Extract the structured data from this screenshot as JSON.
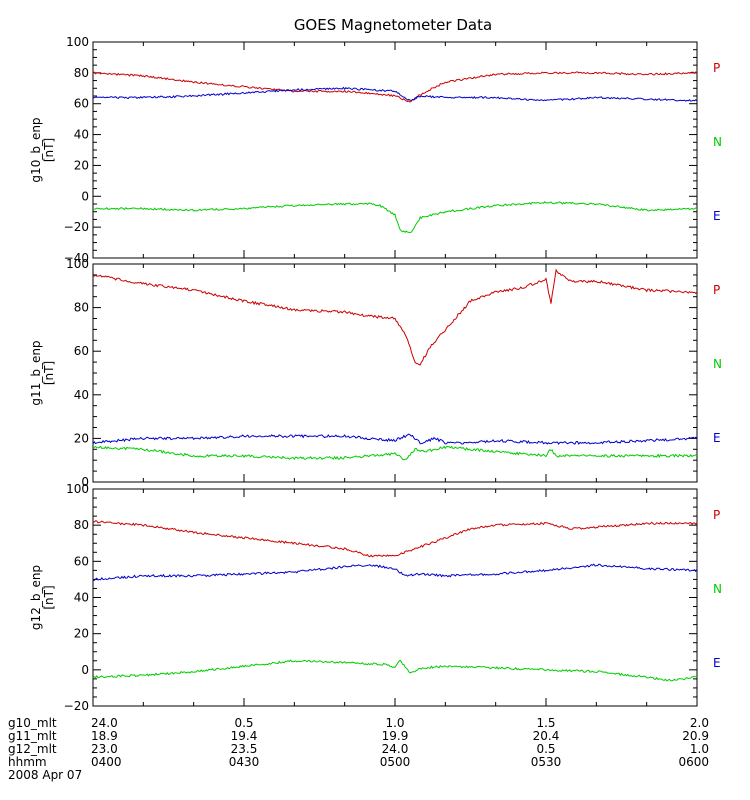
{
  "title": "GOES Magnetometer Data",
  "colors": {
    "P": "#cc0000",
    "N": "#00cc00",
    "E": "#0000cc",
    "axis": "#000000",
    "background": "#ffffff"
  },
  "footer": {
    "labels": [
      "g10_mlt",
      "g11_mlt",
      "g12_mlt",
      "hhmm",
      "2008 Apr 07"
    ],
    "rows": [
      [
        "24.0",
        "0.5",
        "1.0",
        "1.5",
        "2.0"
      ],
      [
        "18.9",
        "19.4",
        "19.9",
        "20.4",
        "20.9"
      ],
      [
        "23.0",
        "23.5",
        "24.0",
        "0.5",
        "1.0"
      ],
      [
        "0400",
        "0430",
        "0500",
        "0530",
        "0600"
      ]
    ]
  },
  "chart_data": [
    {
      "type": "line",
      "ylabel": "g10_b_enp",
      "yunit": "[nT]",
      "ylim": [
        -40,
        100
      ],
      "yticks": [
        -40,
        -20,
        0,
        20,
        40,
        60,
        80,
        100
      ],
      "ytick_labels": [
        "−40",
        "−20",
        "0",
        "20",
        "40",
        "60",
        "80",
        "100"
      ],
      "legend": [
        "P",
        "N",
        "E"
      ],
      "xlim": [
        0,
        120
      ],
      "series": [
        {
          "name": "P",
          "color": "#cc0000",
          "x": [
            0,
            10,
            20,
            30,
            40,
            50,
            55,
            60,
            63,
            65,
            70,
            80,
            90,
            100,
            110,
            120
          ],
          "y": [
            80,
            78,
            74,
            71,
            68,
            68,
            67,
            65,
            61,
            66,
            74,
            79,
            80,
            80,
            79,
            80
          ]
        },
        {
          "name": "N",
          "color": "#0000cc",
          "x": [
            0,
            10,
            20,
            30,
            40,
            50,
            55,
            60,
            63,
            65,
            70,
            80,
            90,
            100,
            110,
            120
          ],
          "y": [
            64,
            64,
            65,
            67,
            69,
            70,
            69,
            68,
            62,
            65,
            64,
            64,
            62,
            64,
            63,
            62
          ]
        },
        {
          "name": "E",
          "color": "#00cc00",
          "x": [
            0,
            10,
            20,
            30,
            40,
            50,
            55,
            57,
            60,
            61,
            63,
            65,
            70,
            80,
            90,
            100,
            110,
            120
          ],
          "y": [
            -8,
            -8,
            -9,
            -8,
            -6,
            -5,
            -5,
            -6,
            -12,
            -22,
            -24,
            -14,
            -10,
            -6,
            -4,
            -5,
            -9,
            -8
          ]
        }
      ]
    },
    {
      "type": "line",
      "ylabel": "g11_b_enp",
      "yunit": "[nT]",
      "ylim": [
        0,
        100
      ],
      "yticks": [
        0,
        20,
        40,
        60,
        80,
        100
      ],
      "ytick_labels": [
        "0",
        "20",
        "40",
        "60",
        "80",
        "100"
      ],
      "legend": [
        "P",
        "N",
        "E"
      ],
      "xlim": [
        0,
        120
      ],
      "series": [
        {
          "name": "P",
          "color": "#cc0000",
          "x": [
            0,
            10,
            20,
            30,
            40,
            50,
            55,
            60,
            62,
            64,
            65,
            67,
            70,
            75,
            80,
            85,
            90,
            91,
            92,
            95,
            100,
            110,
            120
          ],
          "y": [
            95,
            91,
            88,
            83,
            79,
            78,
            76,
            75,
            68,
            55,
            54,
            62,
            70,
            83,
            87,
            89,
            93,
            82,
            97,
            92,
            92,
            88,
            87
          ]
        },
        {
          "name": "E",
          "color": "#0000cc",
          "x": [
            0,
            10,
            20,
            30,
            40,
            50,
            55,
            60,
            63,
            65,
            68,
            70,
            75,
            80,
            90,
            100,
            110,
            120
          ],
          "y": [
            18,
            20,
            20,
            21,
            21,
            21,
            20,
            19,
            22,
            18,
            20,
            18,
            18,
            19,
            18,
            18,
            19,
            20
          ]
        },
        {
          "name": "N",
          "color": "#00cc00",
          "x": [
            0,
            10,
            20,
            30,
            40,
            50,
            55,
            60,
            62,
            64,
            66,
            68,
            70,
            75,
            80,
            90,
            91,
            92,
            100,
            110,
            120
          ],
          "y": [
            16,
            15,
            12,
            12,
            11,
            11,
            12,
            13,
            10,
            15,
            14,
            15,
            16,
            15,
            14,
            12,
            15,
            12,
            12,
            12,
            12
          ]
        }
      ]
    },
    {
      "type": "line",
      "ylabel": "g12_b_enp",
      "yunit": "[nT]",
      "ylim": [
        -20,
        100
      ],
      "yticks": [
        -20,
        0,
        20,
        40,
        60,
        80,
        100
      ],
      "ytick_labels": [
        "−20",
        "0",
        "20",
        "40",
        "60",
        "80",
        "100"
      ],
      "legend": [
        "P",
        "N",
        "E"
      ],
      "xlim": [
        0,
        120
      ],
      "series": [
        {
          "name": "P",
          "color": "#cc0000",
          "x": [
            0,
            10,
            20,
            30,
            40,
            50,
            55,
            60,
            65,
            70,
            75,
            80,
            90,
            95,
            100,
            110,
            120
          ],
          "y": [
            82,
            80,
            76,
            73,
            70,
            67,
            63,
            63,
            68,
            73,
            78,
            80,
            81,
            78,
            79,
            81,
            81
          ]
        },
        {
          "name": "N",
          "color": "#0000cc",
          "x": [
            0,
            10,
            20,
            30,
            40,
            50,
            55,
            60,
            62,
            65,
            70,
            80,
            90,
            100,
            110,
            120
          ],
          "y": [
            50,
            52,
            52,
            53,
            54,
            57,
            58,
            56,
            52,
            53,
            52,
            53,
            55,
            58,
            56,
            55
          ]
        },
        {
          "name": "E",
          "color": "#00cc00",
          "x": [
            0,
            10,
            20,
            30,
            40,
            50,
            58,
            60,
            61,
            63,
            65,
            70,
            80,
            90,
            100,
            110,
            115,
            120
          ],
          "y": [
            -4,
            -3,
            -1,
            2,
            5,
            4,
            3,
            1,
            5,
            -2,
            1,
            2,
            1,
            0,
            -1,
            -4,
            -6,
            -4
          ]
        }
      ]
    }
  ]
}
